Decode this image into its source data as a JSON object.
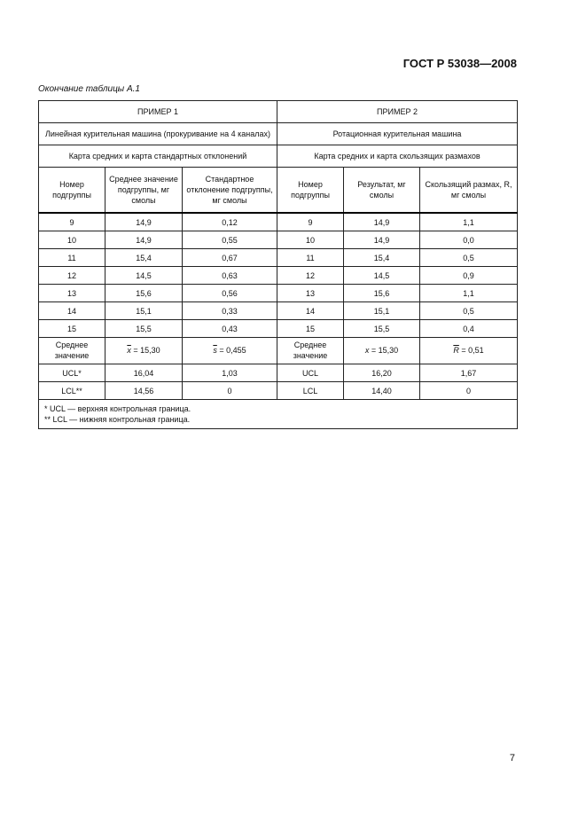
{
  "header": {
    "standard": "ГОСТ Р 53038—2008"
  },
  "caption": "Окончание таблицы А.1",
  "table": {
    "example1": {
      "title": "ПРИМЕР 1",
      "machine": "Линейная курительная машина (прокуривание на 4 каналах)",
      "chart": "Карта средних и карта стандартных отклонений",
      "cols": [
        "Номер подгруппы",
        "Среднее значение подгруппы, мг смолы",
        "Стандартное отклонение подгруппы, мг смолы"
      ]
    },
    "example2": {
      "title": "ПРИМЕР 2",
      "machine": "Ротационная курительная машина",
      "chart": "Карта средних и карта скользящих размахов",
      "cols": [
        "Номер подгруппы",
        "Результат, мг смолы",
        "Скользящий размах, R, мг смолы"
      ]
    },
    "rows": [
      [
        "9",
        "14,9",
        "0,12",
        "9",
        "14,9",
        "1,1"
      ],
      [
        "10",
        "14,9",
        "0,55",
        "10",
        "14,9",
        "0,0"
      ],
      [
        "11",
        "15,4",
        "0,67",
        "11",
        "15,4",
        "0,5"
      ],
      [
        "12",
        "14,5",
        "0,63",
        "12",
        "14,5",
        "0,9"
      ],
      [
        "13",
        "15,6",
        "0,56",
        "13",
        "15,6",
        "1,1"
      ],
      [
        "14",
        "15,1",
        "0,33",
        "14",
        "15,1",
        "0,5"
      ],
      [
        "15",
        "15,5",
        "0,43",
        "15",
        "15,5",
        "0,4"
      ]
    ],
    "mean": {
      "label": "Среднее значение",
      "x1_sym": "x",
      "x1_val": "= 15,30",
      "s_sym": "s",
      "s_val": "= 0,455",
      "x2_sym": "x",
      "x2_val": "= 15,30",
      "r_sym": "R",
      "r_val": "= 0,51"
    },
    "ucl": [
      "UCL*",
      "16,04",
      "1,03",
      "UCL",
      "16,20",
      "1,67"
    ],
    "lcl": [
      "LCL**",
      "14,56",
      "0",
      "LCL",
      "14,40",
      "0"
    ],
    "footnotes": [
      "* UCL — верхняя контрольная граница.",
      "** LCL — нижняя контрольная граница."
    ]
  },
  "page_number": "7"
}
